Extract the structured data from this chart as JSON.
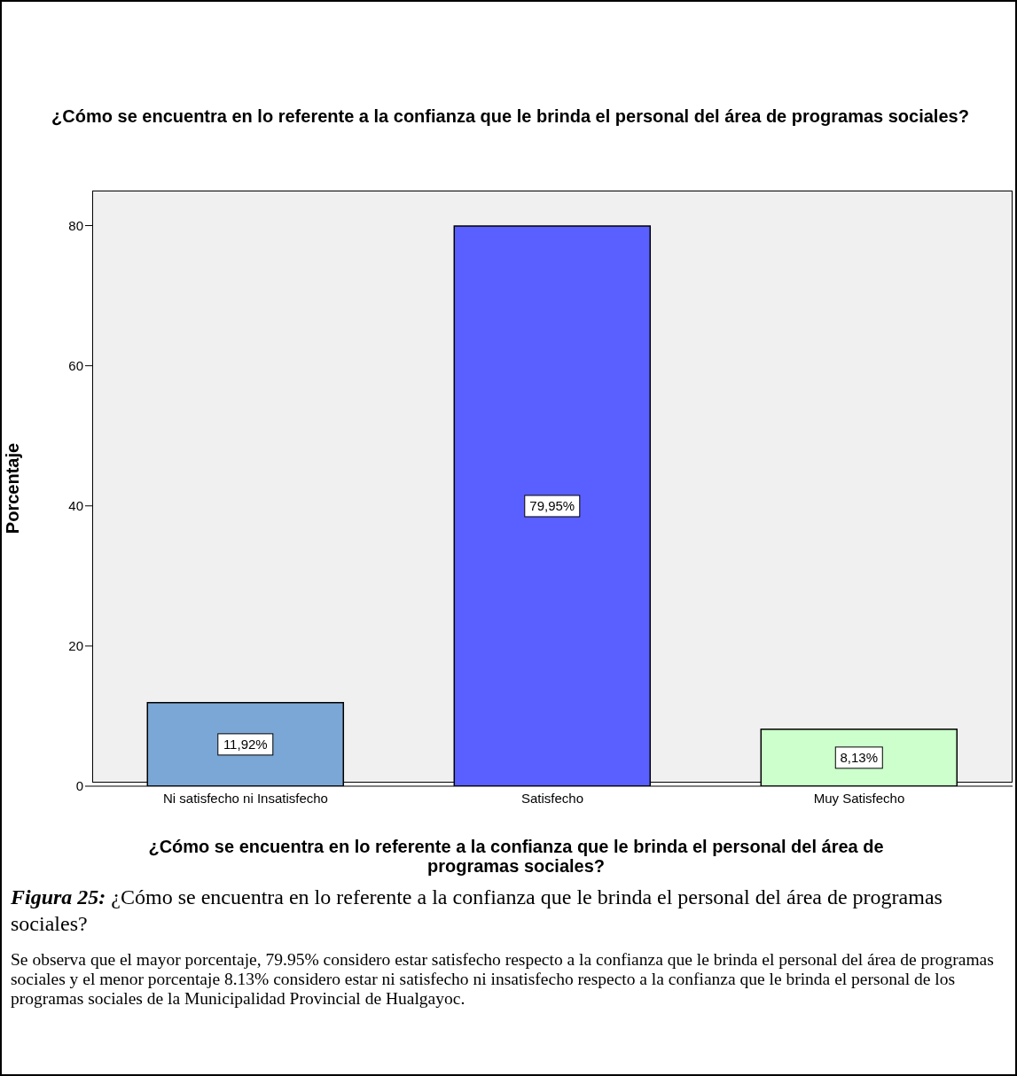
{
  "chart_data": {
    "type": "bar",
    "title": "¿Cómo se encuentra en lo referente a la confianza que le brinda el personal del área de programas sociales?",
    "xlabel": "¿Cómo se encuentra en lo referente a la confianza que le brinda el personal del área de programas sociales?",
    "ylabel": "Porcentaje",
    "categories": [
      "Ni satisfecho ni Insatisfecho",
      "Satisfecho",
      "Muy Satisfecho"
    ],
    "values": [
      11.92,
      79.95,
      8.13
    ],
    "colors": [
      "#7ba7d6",
      "#5a5fff",
      "#ccffcc"
    ],
    "value_labels": [
      "11,92%",
      "79,95%",
      "8,13%"
    ],
    "ylim": [
      0,
      85
    ],
    "yticks": [
      0,
      20,
      40,
      60,
      80
    ],
    "grid": false,
    "legend": false,
    "annotations": [
      "Figura 25: ¿Cómo se encuentra en lo referente a la confianza que le brinda el personal del área de programas sociales?",
      "Se observa que el mayor porcentaje, 79.95% considero estar satisfecho respecto a la confianza que le brinda el personal del área de programas sociales y el menor porcentaje 8.13% considero estar ni satisfecho ni insatisfecho respecto a la confianza que le brinda el personal de los programas sociales de la Municipalidad Provincial de Hualgayoc."
    ]
  }
}
